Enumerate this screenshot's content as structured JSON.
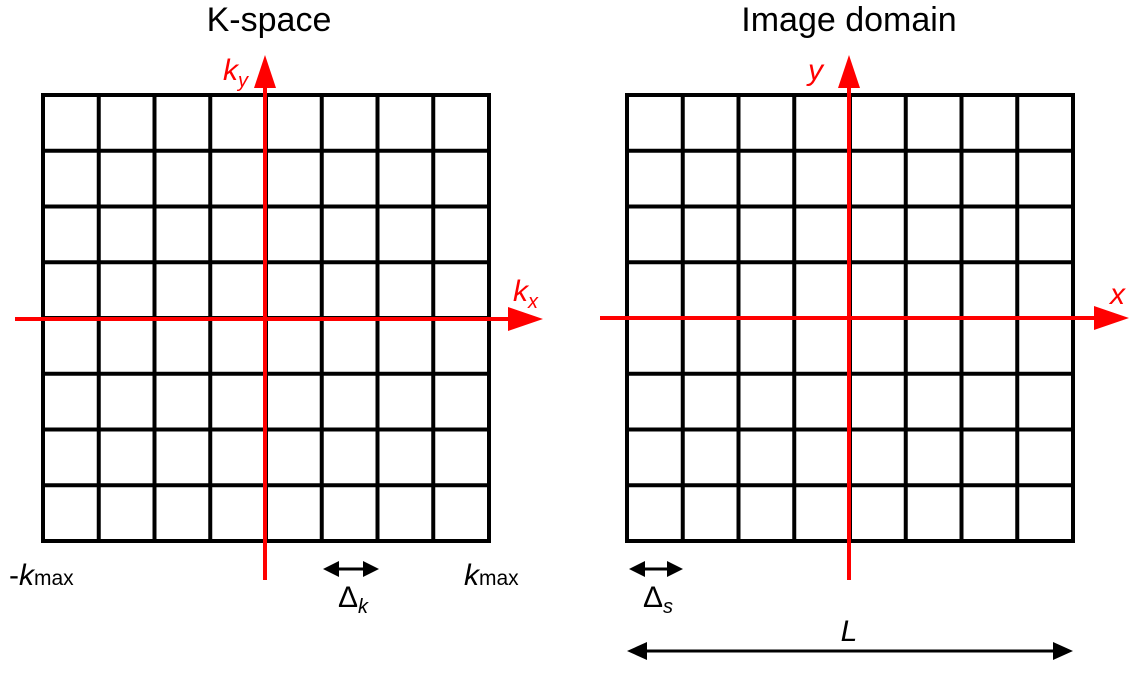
{
  "colors": {
    "axis": "#ff0000",
    "grid": "#000000",
    "background": "#ffffff"
  },
  "grid_cells": 8,
  "kspace": {
    "title": "K-space",
    "axis_y": {
      "base": "k",
      "sub": "y"
    },
    "axis_x": {
      "base": "k",
      "sub": "x"
    },
    "min_label": {
      "prefix": "-",
      "base": "k",
      "sub": "max"
    },
    "max_label": {
      "base": "k",
      "sub": "max"
    },
    "spacing_label": {
      "base": "Δ",
      "sub": "k"
    }
  },
  "image": {
    "title": "Image domain",
    "axis_y": "y",
    "axis_x": "x",
    "spacing_label": {
      "base": "Δ",
      "sub": "s"
    },
    "length_label": "L"
  }
}
